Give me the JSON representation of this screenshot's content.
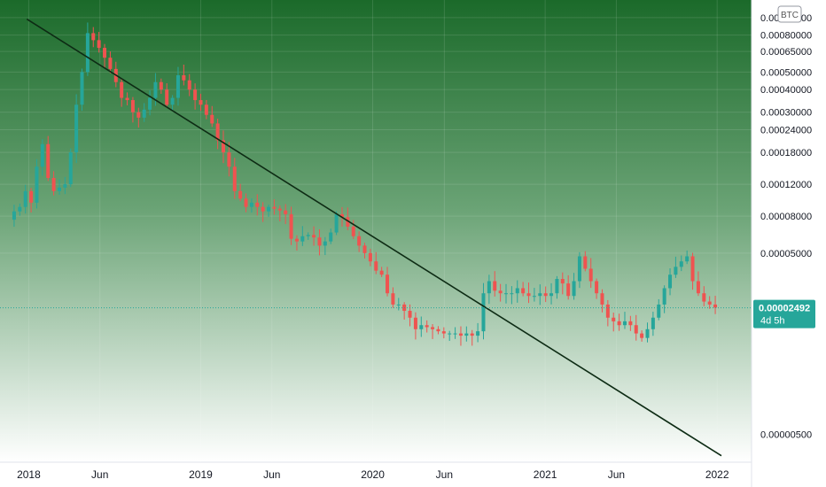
{
  "chart_data": {
    "type": "candlestick",
    "title": "",
    "xlabel": "",
    "ylabel": "",
    "y_scale": "log",
    "currency_badge": "BTC",
    "ylim": [
      3.5e-06,
      0.00125
    ],
    "xlim": [
      "2017-11-01",
      "2022-03-15"
    ],
    "y_ticks": [
      {
        "value": 0.001,
        "label": "0.00100000"
      },
      {
        "value": 0.0008,
        "label": "0.00080000"
      },
      {
        "value": 0.00065,
        "label": "0.00065000"
      },
      {
        "value": 0.0005,
        "label": "0.00050000"
      },
      {
        "value": 0.0004,
        "label": "0.00040000"
      },
      {
        "value": 0.0003,
        "label": "0.00030000"
      },
      {
        "value": 0.00024,
        "label": "0.00024000"
      },
      {
        "value": 0.00018,
        "label": "0.00018000"
      },
      {
        "value": 0.00012,
        "label": "0.00012000"
      },
      {
        "value": 8e-05,
        "label": "0.00008000"
      },
      {
        "value": 5e-05,
        "label": "0.00005000"
      },
      {
        "value": 5e-06,
        "label": "0.00000500"
      }
    ],
    "x_ticks": [
      {
        "date": "2018-01-01",
        "label": "2018"
      },
      {
        "date": "2018-06-01",
        "label": "Jun"
      },
      {
        "date": "2019-01-01",
        "label": "2019"
      },
      {
        "date": "2019-06-01",
        "label": "Jun"
      },
      {
        "date": "2020-01-01",
        "label": "2020"
      },
      {
        "date": "2020-06-01",
        "label": "Jun"
      },
      {
        "date": "2021-01-01",
        "label": "2021"
      },
      {
        "date": "2021-06-01",
        "label": "Jun"
      },
      {
        "date": "2022-01-01",
        "label": "2022"
      }
    ],
    "current_price": {
      "value": 2.492e-05,
      "label": "0.00002492",
      "countdown": "4d 5h"
    },
    "trendline": {
      "start": {
        "date": "2017-12-28",
        "value": 0.00098
      },
      "end": {
        "date": "2022-01-10",
        "value": 3.8e-06
      }
    },
    "series": [
      {
        "close": [
          8.5e-05,
          9e-05,
          0.00011,
          9.5e-05,
          0.00015,
          0.0002,
          0.00013,
          0.00011,
          0.000115,
          0.00012,
          0.00018,
          0.00033,
          0.0005,
          0.00082,
          0.00075,
          0.00068,
          0.0006,
          0.00052,
          0.00044,
          0.00036,
          0.00035,
          0.0003,
          0.00028,
          0.00031,
          0.00036,
          0.00044,
          0.0004,
          0.00033,
          0.00036,
          0.00048,
          0.00045,
          0.0004,
          0.00035,
          0.00033,
          0.00029,
          0.00026,
          0.00021,
          0.00018,
          0.00015,
          0.00011,
          0.0001,
          9e-05,
          9.5e-05,
          9e-05,
          8.5e-05,
          9e-05,
          8.8e-05,
          8.6e-05,
          8.2e-05,
          6e-05,
          5.8e-05,
          6.2e-05,
          6.3e-05,
          6.1e-05,
          5.5e-05,
          5.8e-05,
          6.5e-05,
          8.2e-05,
          7.9e-05,
          7e-05,
          6.2e-05,
          5.5e-05,
          5e-05,
          4.5e-05,
          4e-05,
          3.8e-05,
          3e-05,
          2.6e-05,
          2.6e-05,
          2.4e-05,
          2.2e-05,
          1.9e-05,
          2e-05,
          1.95e-05,
          1.9e-05,
          1.85e-05,
          1.8e-05,
          1.8e-05,
          1.8e-05,
          1.75e-05,
          1.8e-05,
          1.75e-05,
          1.85e-05,
          3e-05,
          3.5e-05,
          3.1e-05,
          3e-05,
          3e-05,
          3e-05,
          3.2e-05,
          3e-05,
          2.9e-05,
          2.9e-05,
          3e-05,
          2.9e-05,
          3e-05,
          3.6e-05,
          3.4e-05,
          2.9e-05,
          3.5e-05,
          4.8e-05,
          4.1e-05,
          3.5e-05,
          3e-05,
          2.6e-05,
          2.2e-05,
          2.1e-05,
          2e-05,
          2.1e-05,
          2e-05,
          1.8e-05,
          1.7e-05,
          1.9e-05,
          2.2e-05,
          2.6e-05,
          3.2e-05,
          3.8e-05,
          4.2e-05,
          4.5e-05,
          4.8e-05,
          3.5e-05,
          3e-05,
          2.7e-05,
          2.6e-05,
          2.5e-05
        ]
      }
    ]
  }
}
